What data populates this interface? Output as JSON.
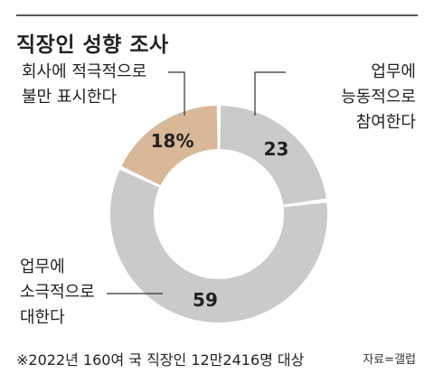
{
  "title": "직장인 성향 조사",
  "footnote": "※2022년 160여 국 직장인 12만2416명 대상",
  "source": "자료=갤럽",
  "colors": {
    "highlight": "#d8b896",
    "base": "#cacaca",
    "text": "#222222",
    "leader": "#333333"
  },
  "chart_data": {
    "type": "pie",
    "donut": true,
    "title": "직장인 성향 조사",
    "slices": [
      {
        "value": 23,
        "label": "23",
        "category_lines": [
          "업무에",
          "능동적으로",
          "참여한다"
        ],
        "color": "#cacaca"
      },
      {
        "value": 59,
        "label": "59",
        "category_lines": [
          "업무에",
          "소극적으로",
          "대한다"
        ],
        "color": "#cacaca"
      },
      {
        "value": 18,
        "label": "18%",
        "category_lines": [
          "회사에 적극적으로",
          "불만 표시한다"
        ],
        "color": "#d8b896"
      }
    ]
  }
}
